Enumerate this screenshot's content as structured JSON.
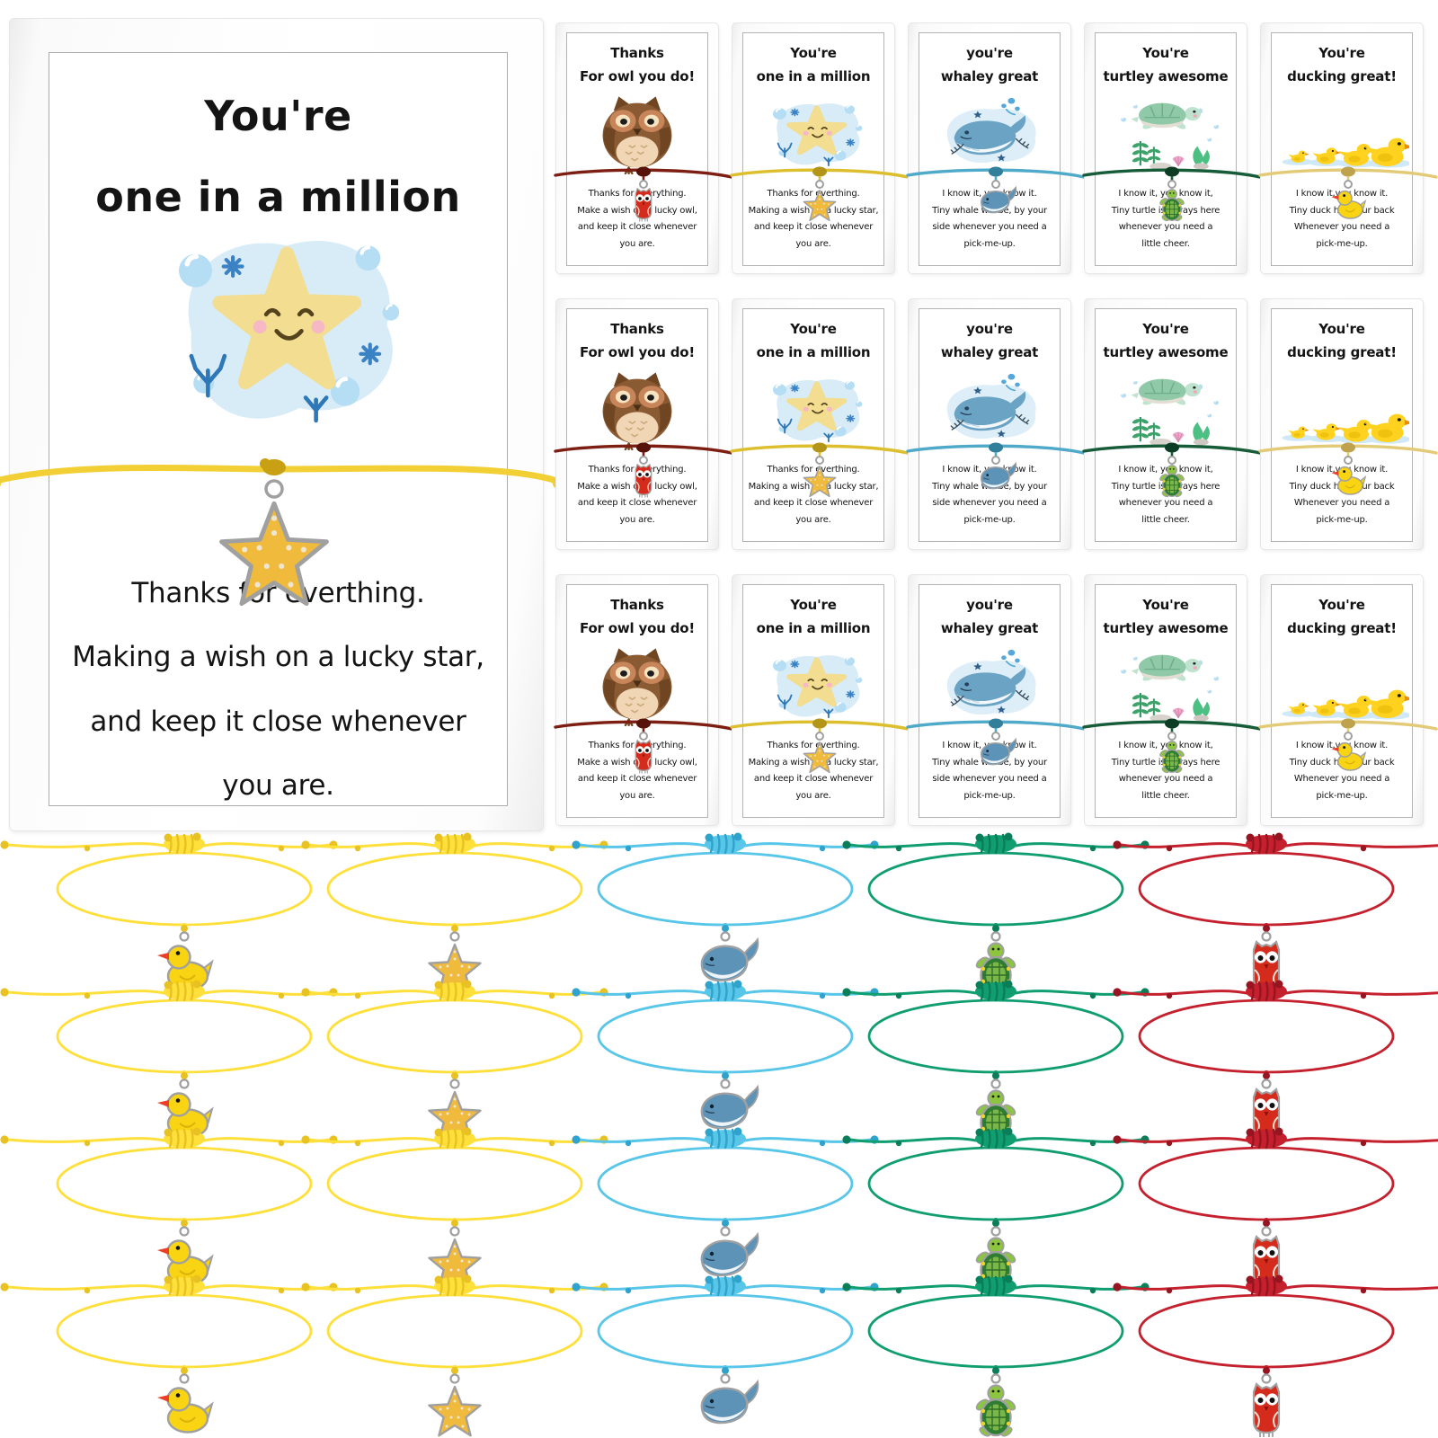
{
  "big_card": {
    "title_line1": "You're",
    "title_line2": "one in a million",
    "body_lines": [
      "Thanks for everthing.",
      "Making a wish on a lucky star,",
      "and keep it close whenever",
      "you are."
    ],
    "charm": "starfish",
    "cord_color": "#f2cf35",
    "cord_dark": "#c9a013"
  },
  "mini_cards": {
    "rows": 3,
    "column_order": [
      "owl",
      "starfish",
      "whale",
      "turtle",
      "duck"
    ]
  },
  "card_types": {
    "owl": {
      "title_line1": "Thanks",
      "title_line2": "For owl you do!",
      "body_lines": [
        "Thanks for everything.",
        "Make a wish on a lucky owl,",
        "and keep it close whenever",
        "you are."
      ],
      "cord_color": "#7d1e12",
      "cord_dark": "#57120a",
      "charm": "owl"
    },
    "starfish": {
      "title_line1": "You're",
      "title_line2": "one in a million",
      "body_lines": [
        "Thanks for everthing.",
        "Making a wish on a lucky star,",
        "and keep it close whenever",
        "you are."
      ],
      "cord_color": "#ddbf2e",
      "cord_dark": "#b3951a",
      "charm": "starfish"
    },
    "whale": {
      "title_line1": "you're",
      "title_line2": "whaley great",
      "body_lines": [
        "I know it, you know it.",
        "Tiny whale will be, by your",
        "side whenever you need a",
        "pick-me-up."
      ],
      "cord_color": "#4fa9c9",
      "cord_dark": "#327f9b",
      "charm": "whale"
    },
    "turtle": {
      "title_line1": "You're",
      "title_line2": "turtley awesome",
      "body_lines": [
        "I know it, you know it,",
        "Tiny turtle is always here",
        "whenever you need a",
        "little cheer."
      ],
      "cord_color": "#175c38",
      "cord_dark": "#0d3d24",
      "charm": "turtle"
    },
    "duck": {
      "title_line1": "You're",
      "title_line2": "ducking great!",
      "body_lines": [
        "I know it,you know it.",
        "Tiny duck has your back",
        "Whenever you need a",
        "pick-me-up."
      ],
      "cord_color": "#e2ca76",
      "cord_dark": "#bfa24d",
      "charm": "duck"
    }
  },
  "bracelets": {
    "rows": 4,
    "columns": [
      {
        "charm": "duck",
        "cord": "#ffdf3a",
        "knot": "#e8c122"
      },
      {
        "charm": "starfish",
        "cord": "#ffdf3a",
        "knot": "#e8c122"
      },
      {
        "charm": "whale",
        "cord": "#58c6e8",
        "knot": "#2fa3cb"
      },
      {
        "charm": "turtle",
        "cord": "#109e71",
        "knot": "#0a7e59"
      },
      {
        "charm": "owl",
        "cord": "#c4202d",
        "knot": "#971521"
      }
    ]
  },
  "charm_colors": {
    "metal": "#a0a0a0",
    "duck_body": "#f8d412",
    "duck_beak": "#e8402b",
    "star_body": "#f0ba3c",
    "whale_body": "#5e93b8",
    "whale_belly": "#eef4f7",
    "turtle_body": "#8cc63f",
    "turtle_shell": "#2e7d32",
    "owl_body": "#d42b1c"
  }
}
